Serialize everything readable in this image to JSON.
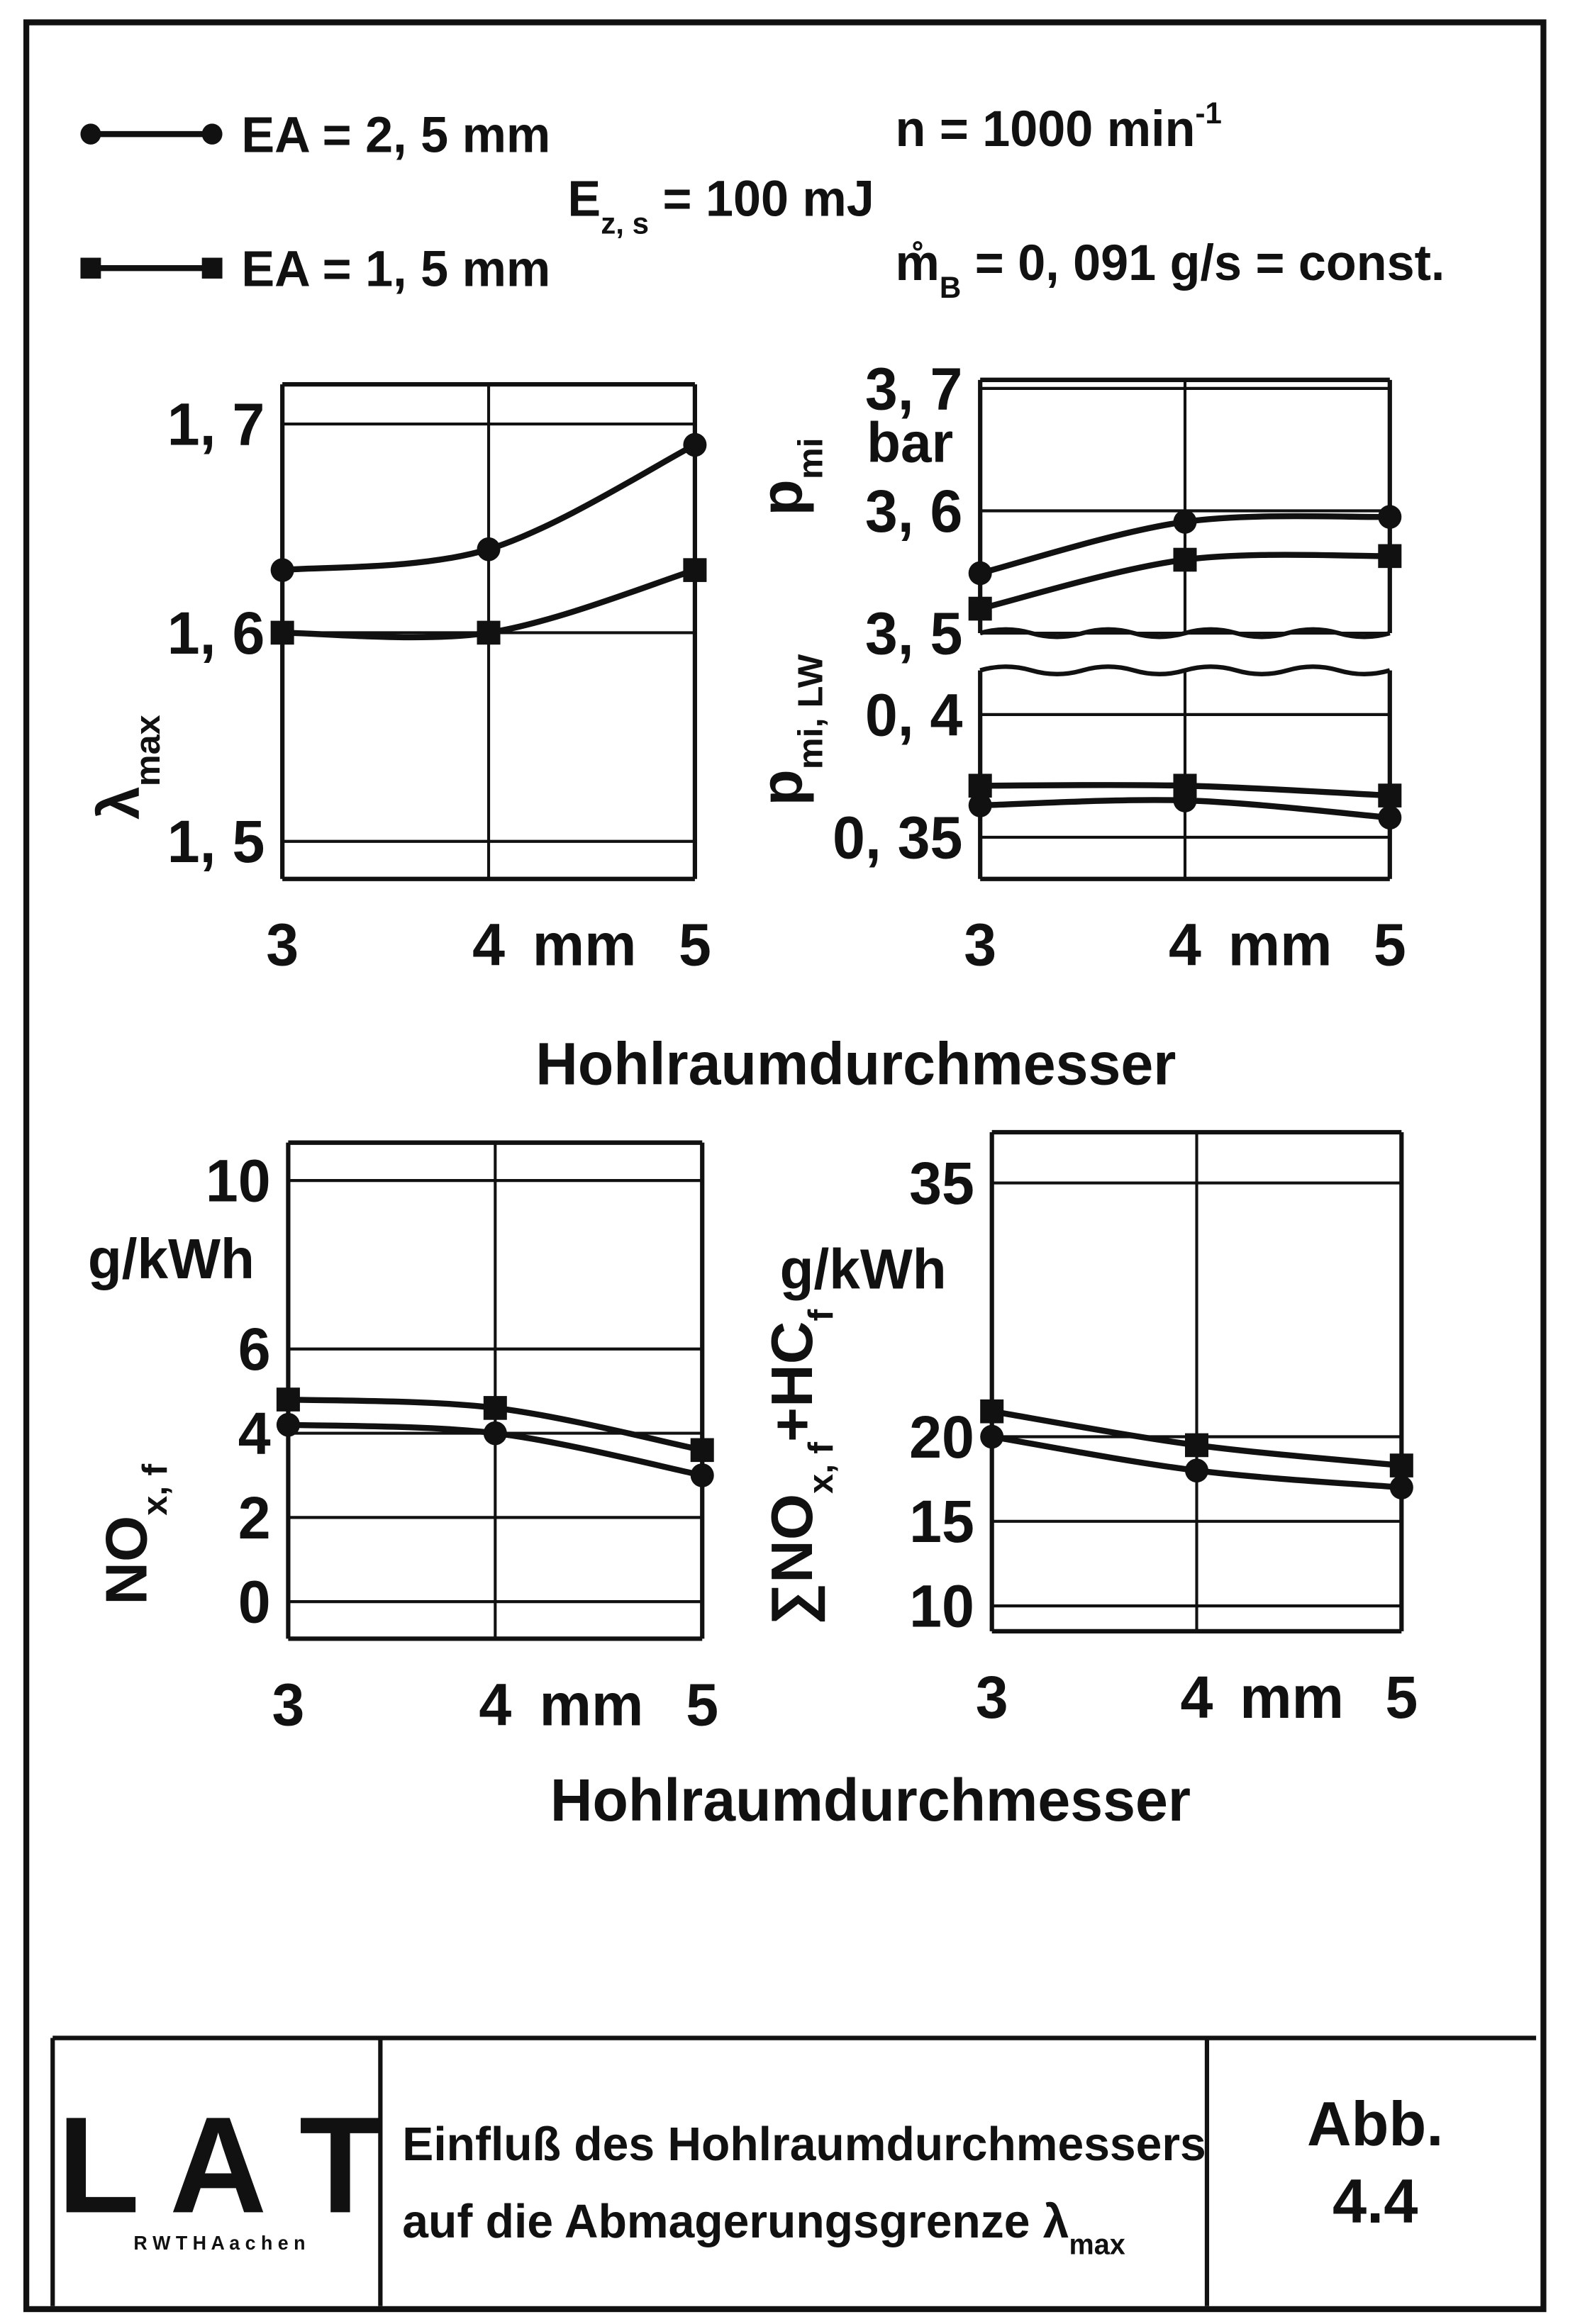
{
  "header": {
    "legend": [
      {
        "name": "EA = 2, 5 mm",
        "marker": "circle"
      },
      {
        "name": "EA = 1, 5 mm",
        "marker": "square"
      }
    ],
    "notes": [
      [
        {
          "text": "E"
        },
        {
          "text": "z, s",
          "shift": "sub"
        },
        {
          "text": " = 100 mJ"
        }
      ],
      [
        {
          "text": "n  = 1000 min"
        },
        {
          "text": "-1",
          "shift": "sup"
        }
      ],
      [
        {
          "text": "m̊"
        },
        {
          "text": "B",
          "shift": "sub"
        },
        {
          "text": " = 0, 091 g/s = const."
        }
      ]
    ]
  },
  "xlabels": [
    "Hohlraumdurchmesser",
    "Hohlraumdurchmesser"
  ],
  "chart_data": [
    {
      "type": "line",
      "ylabel": [
        {
          "text": "λ"
        },
        {
          "text": "max",
          "shift": "sub"
        }
      ],
      "x": [
        3,
        4,
        5
      ],
      "xlim": [
        3,
        5
      ],
      "xticks": [
        3,
        4,
        5
      ],
      "xunit": "mm",
      "ylim": [
        1.482,
        1.719
      ],
      "yticks": [
        {
          "value": 1.5,
          "label": "1, 5"
        },
        {
          "value": 1.6,
          "label": "1, 6"
        },
        {
          "value": 1.7,
          "label": "1, 7"
        }
      ],
      "grid": true,
      "series": [
        {
          "color": "#111111",
          "marker": "circle",
          "values": [
            1.63,
            1.64,
            1.69
          ]
        },
        {
          "color": "#111111",
          "marker": "square",
          "values": [
            1.6,
            1.6,
            1.63
          ]
        }
      ]
    },
    {
      "type": "line",
      "ylabel": [
        {
          "text": "p"
        },
        {
          "text": "mi",
          "shift": "sub"
        }
      ],
      "yunit": "bar",
      "x": [
        3,
        4,
        5
      ],
      "xlim": [
        3,
        5
      ],
      "ylim": [
        3.5,
        3.707
      ],
      "yticks": [
        {
          "value": 3.5,
          "label": "3, 5"
        },
        {
          "value": 3.6,
          "label": "3, 6"
        },
        {
          "value": 3.7,
          "label": "3, 7"
        }
      ],
      "grid": true,
      "broken_bottom": true,
      "series": [
        {
          "color": "#111111",
          "marker": "circle",
          "values": [
            3.549,
            3.591,
            3.595
          ]
        },
        {
          "color": "#111111",
          "marker": "square",
          "values": [
            3.52,
            3.56,
            3.563
          ]
        }
      ]
    },
    {
      "type": "line",
      "ylabel": [
        {
          "text": "p"
        },
        {
          "text": "mi, LW",
          "shift": "sub"
        }
      ],
      "x": [
        3,
        4,
        5
      ],
      "xlim": [
        3,
        5
      ],
      "xticks": [
        3,
        4,
        5
      ],
      "xunit": "mm",
      "ylim": [
        0.333,
        0.418
      ],
      "yticks": [
        {
          "value": 0.35,
          "label": "0, 35"
        },
        {
          "value": 0.4,
          "label": "0, 4"
        }
      ],
      "grid": true,
      "broken_top": true,
      "series": [
        {
          "color": "#111111",
          "marker": "circle",
          "values": [
            0.363,
            0.365,
            0.358
          ]
        },
        {
          "color": "#111111",
          "marker": "square",
          "values": [
            0.371,
            0.371,
            0.367
          ]
        }
      ]
    },
    {
      "type": "line",
      "ylabel": [
        {
          "text": "NO"
        },
        {
          "text": "x, f",
          "shift": "sub"
        }
      ],
      "yunit": "g/kWh",
      "x": [
        3,
        4,
        5
      ],
      "xlim": [
        3,
        5
      ],
      "xticks": [
        3,
        4,
        5
      ],
      "xunit": "mm",
      "ylim": [
        -0.88,
        10.9
      ],
      "yticks": [
        0,
        2,
        4,
        6,
        10
      ],
      "grid": true,
      "series": [
        {
          "color": "#111111",
          "marker": "circle",
          "values": [
            4.2,
            4.0,
            3.0
          ]
        },
        {
          "color": "#111111",
          "marker": "square",
          "values": [
            4.8,
            4.6,
            3.6
          ]
        }
      ]
    },
    {
      "type": "line",
      "ylabel": [
        {
          "text": "∑NO"
        },
        {
          "text": "x, f",
          "shift": "sub"
        },
        {
          "text": "+HC"
        },
        {
          "text": "f",
          "shift": "sub"
        }
      ],
      "yunit": "g/kWh",
      "x": [
        3,
        4,
        5
      ],
      "xlim": [
        3,
        5
      ],
      "xticks": [
        3,
        4,
        5
      ],
      "xunit": "mm",
      "ylim": [
        8.5,
        38
      ],
      "yticks": [
        10,
        15,
        20,
        35
      ],
      "grid": true,
      "series": [
        {
          "color": "#111111",
          "marker": "circle",
          "values": [
            20,
            18,
            17
          ]
        },
        {
          "color": "#111111",
          "marker": "square",
          "values": [
            21.5,
            19.5,
            18.3
          ]
        }
      ]
    }
  ],
  "footer": {
    "logo": "L A T",
    "logo_sub": "R W T H   A a c h e n",
    "caption": [
      [
        {
          "text": "Einfluß des Hohlraumdurchmessers"
        }
      ],
      [
        {
          "text": "auf die Abmagerungsgrenze λ"
        },
        {
          "text": "max",
          "shift": "sub"
        }
      ]
    ],
    "fig": [
      "Abb.",
      "4.4"
    ]
  }
}
